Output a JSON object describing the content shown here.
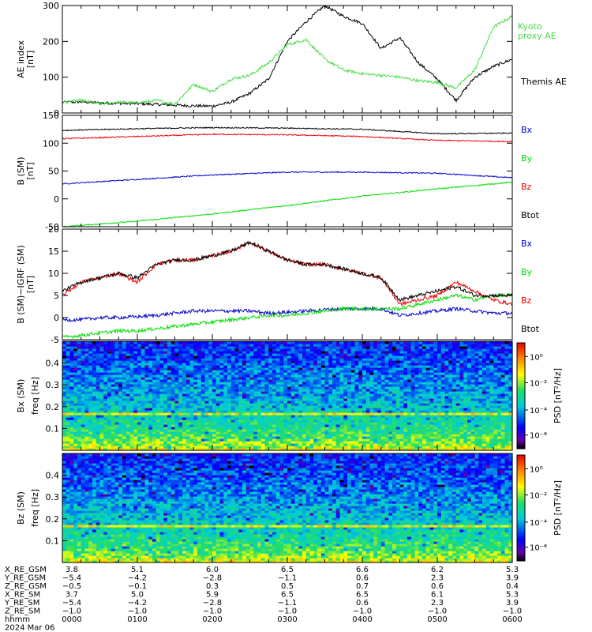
{
  "colors": {
    "black": "#000000",
    "red": "#ee0000",
    "blue": "#0000cc",
    "green": "#00dd00",
    "kyoto": "#44dd44"
  },
  "chart_data": [
    {
      "type": "line",
      "panel": "ae",
      "ylabel": "AE index",
      "yunit": "[nT]",
      "ylim": [
        0,
        300
      ],
      "yticks": [
        "0",
        "100",
        "200",
        "300"
      ],
      "x_hours": [
        0,
        0.25,
        0.5,
        0.75,
        1,
        1.25,
        1.5,
        1.75,
        2,
        2.25,
        2.5,
        2.75,
        3,
        3.25,
        3.5,
        3.75,
        4,
        4.25,
        4.5,
        4.75,
        5,
        5.25,
        5.5,
        5.75,
        6
      ],
      "series": [
        {
          "name": "Themis AE",
          "color_key": "black",
          "values": [
            30,
            31,
            28,
            27,
            26,
            24,
            22,
            20,
            19,
            30,
            55,
            95,
            200,
            255,
            300,
            270,
            250,
            180,
            210,
            140,
            95,
            35,
            100,
            130,
            150
          ]
        },
        {
          "name": "Kyoto proxy AE",
          "label_lines": [
            "Kyoto",
            "proxy AE"
          ],
          "color_key": "kyoto",
          "values": [
            30,
            35,
            25,
            30,
            28,
            35,
            25,
            80,
            60,
            95,
            105,
            140,
            190,
            205,
            150,
            120,
            110,
            105,
            100,
            90,
            85,
            70,
            120,
            240,
            270
          ]
        }
      ]
    },
    {
      "type": "line",
      "panel": "b",
      "ylabel": "B (SM)",
      "yunit": "[nT]",
      "ylim": [
        -50,
        150
      ],
      "yticks": [
        "-50",
        "0",
        "50",
        "100",
        "150"
      ],
      "x_hours": [
        0,
        1,
        2,
        3,
        4,
        5,
        6
      ],
      "series": [
        {
          "name": "Bx",
          "color_key": "blue",
          "values": [
            27,
            35,
            43,
            48,
            48,
            46,
            38
          ]
        },
        {
          "name": "By",
          "color_key": "green",
          "values": [
            -50,
            -40,
            -27,
            -12,
            5,
            18,
            30
          ]
        },
        {
          "name": "Bz",
          "color_key": "red",
          "values": [
            108,
            112,
            116,
            115,
            112,
            105,
            103
          ]
        },
        {
          "name": "Btot",
          "color_key": "black",
          "values": [
            123,
            126,
            128,
            127,
            125,
            117,
            118
          ]
        }
      ]
    },
    {
      "type": "line",
      "panel": "db",
      "ylabel": "B (SM)−IGRF (SM)",
      "yunit": "[nT]",
      "ylim": [
        -5,
        20
      ],
      "yticks": [
        "-5",
        "0",
        "5",
        "10",
        "15",
        "20"
      ],
      "x_hours": [
        0,
        0.25,
        0.5,
        0.75,
        1,
        1.25,
        1.5,
        1.75,
        2,
        2.25,
        2.5,
        2.75,
        3,
        3.25,
        3.5,
        3.75,
        4,
        4.25,
        4.5,
        4.75,
        5,
        5.25,
        5.5,
        5.75,
        6
      ],
      "series": [
        {
          "name": "Bx",
          "color_key": "blue",
          "values": [
            -0.5,
            -0.5,
            0,
            0,
            0.2,
            0.5,
            1,
            1.5,
            1.5,
            1.5,
            1.5,
            1,
            1.2,
            1.5,
            1.8,
            2,
            2,
            2,
            0.5,
            1,
            1.5,
            2,
            1.5,
            1,
            1
          ]
        },
        {
          "name": "By",
          "color_key": "green",
          "values": [
            -4.5,
            -4,
            -3.5,
            -3,
            -3,
            -2.5,
            -2,
            -1.5,
            -1,
            -0.5,
            0,
            0.5,
            0.5,
            1,
            1.5,
            2,
            2,
            2,
            2,
            3,
            4,
            5,
            4,
            5,
            5
          ]
        },
        {
          "name": "Bz",
          "color_key": "red",
          "values": [
            5,
            8,
            9,
            10,
            8,
            12,
            13,
            13,
            14,
            15,
            17,
            15,
            13,
            12,
            12,
            11,
            10,
            9,
            3,
            4,
            5,
            8,
            6,
            4,
            3
          ]
        },
        {
          "name": "Btot",
          "color_key": "black",
          "values": [
            6,
            8,
            9,
            10,
            9,
            12,
            13,
            13,
            14,
            15,
            17,
            15,
            13,
            12,
            12,
            11,
            10,
            9,
            4,
            5,
            6,
            7,
            5,
            5,
            5
          ]
        }
      ]
    },
    {
      "type": "heatmap",
      "panel": "spec_bx",
      "ylabel": "Bx (SM)",
      "ysub": "freq [Hz]",
      "ylim": [
        0,
        0.5
      ],
      "yticks": [
        "0.1",
        "0.2",
        "0.3",
        "0.4"
      ],
      "colorbar": {
        "label": "PSD [nT²/Hz]",
        "ticks": [
          "10⁰",
          "10⁻²",
          "10⁻⁴",
          "10⁻⁶"
        ]
      }
    },
    {
      "type": "heatmap",
      "panel": "spec_bz",
      "ylabel": "Bz (SM)",
      "ysub": "freq [Hz]",
      "ylim": [
        0,
        0.5
      ],
      "yticks": [
        "0.1",
        "0.2",
        "0.3",
        "0.4"
      ],
      "colorbar": {
        "label": "PSD [nT²/Hz]",
        "ticks": [
          "10⁰",
          "10⁻²",
          "10⁻⁴",
          "10⁻⁶"
        ]
      }
    }
  ],
  "orbit_table": {
    "rows": [
      {
        "label": "X_RE_GSM",
        "values": [
          "3.8",
          "5.1",
          "6.0",
          "6.5",
          "6.6",
          "6.2",
          "5.3"
        ]
      },
      {
        "label": "Y_RE_GSM",
        "values": [
          "−5.4",
          "−4.2",
          "−2.8",
          "−1.1",
          "0.6",
          "2.3",
          "3.9"
        ]
      },
      {
        "label": "Z_RE_GSM",
        "values": [
          "−0.5",
          "−0.1",
          "0.3",
          "0.5",
          "0.7",
          "0.6",
          "0.4"
        ]
      },
      {
        "label": "X_RE_SM",
        "values": [
          "3.7",
          "5.0",
          "5.9",
          "6.5",
          "6.5",
          "6.1",
          "5.3"
        ]
      },
      {
        "label": "Y_RE_SM",
        "values": [
          "−5.4",
          "−4.2",
          "−2.8",
          "−1.1",
          "0.6",
          "2.3",
          "3.9"
        ]
      },
      {
        "label": "Z_RE_SM",
        "values": [
          "−1.0",
          "−1.0",
          "−1.0",
          "−1.0",
          "−1.0",
          "−1.0",
          "−1.0"
        ]
      },
      {
        "label": "hhmm",
        "values": [
          "0000",
          "0100",
          "0200",
          "0300",
          "0400",
          "0500",
          "0600"
        ]
      }
    ],
    "date": "2024 Mar 06"
  }
}
